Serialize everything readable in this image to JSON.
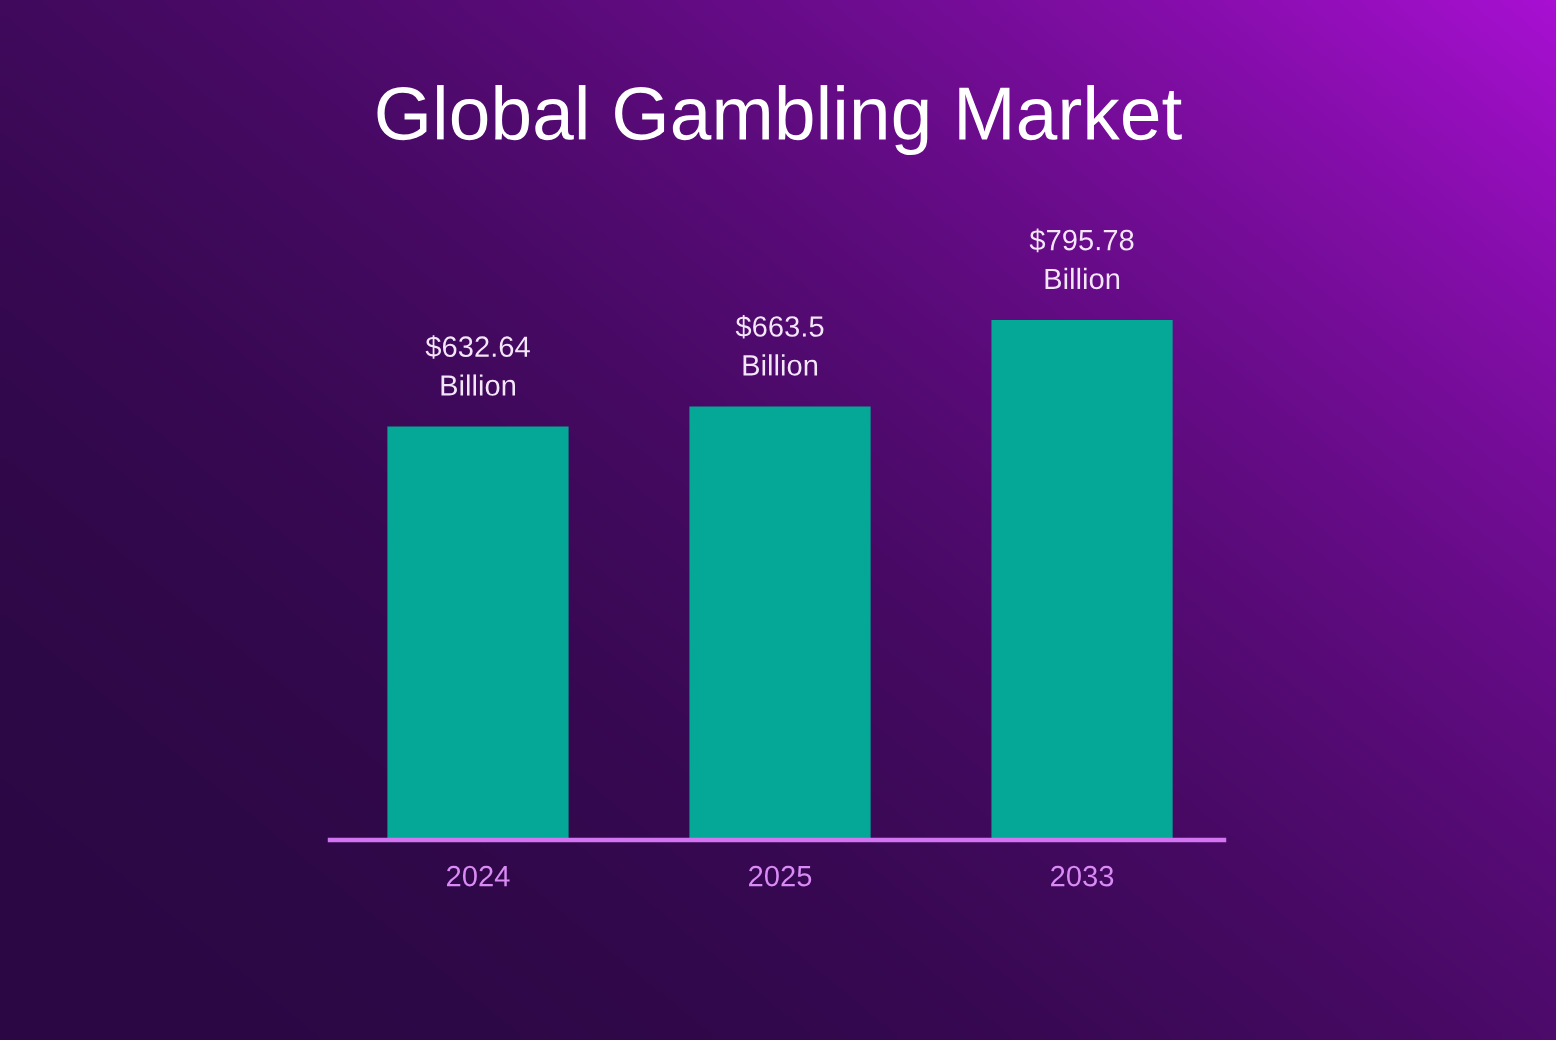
{
  "chart_data": {
    "type": "bar",
    "title": "Global Gambling Market",
    "categories": [
      "2024",
      "2025",
      "2033"
    ],
    "values": [
      632.64,
      663.5,
      795.78
    ],
    "value_labels": [
      "$632.64\nBillion",
      "$663.5\nBillion",
      "$795.78\nBillion"
    ],
    "color": "#05a896",
    "tick_labels": "x"
  }
}
